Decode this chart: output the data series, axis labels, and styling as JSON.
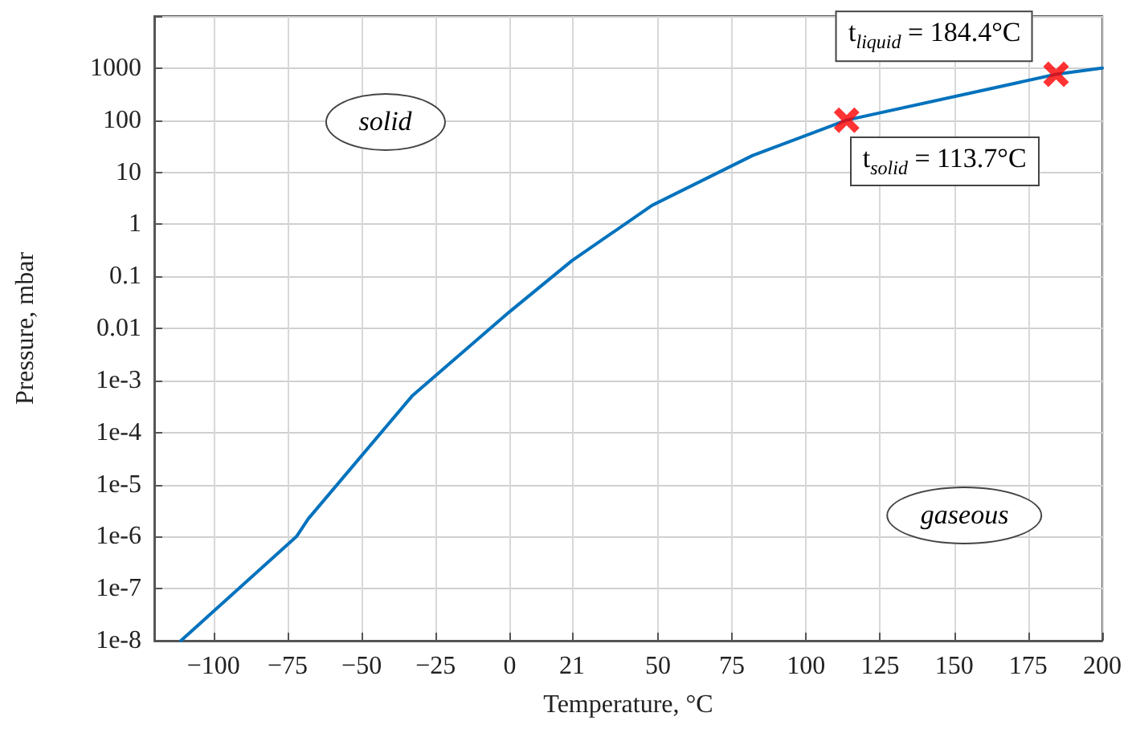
{
  "chart_data": {
    "type": "line",
    "xlabel": "Temperature, °C",
    "ylabel": "Pressure, mbar",
    "log": "y",
    "grid": true,
    "xlim": [
      -120,
      200
    ],
    "xticks": [
      {
        "value": -100,
        "label": "−100"
      },
      {
        "value": -75,
        "label": "−75"
      },
      {
        "value": -50,
        "label": "−50"
      },
      {
        "value": -25,
        "label": "−25"
      },
      0,
      21,
      50,
      75,
      100,
      125,
      150,
      175,
      200
    ],
    "ylim": [
      1e-08,
      10000
    ],
    "yticks": [
      {
        "value": 1e-08,
        "label": "1e-8"
      },
      {
        "value": 1e-07,
        "label": "1e-7"
      },
      {
        "value": 1e-06,
        "label": "1e-6"
      },
      {
        "value": 1e-05,
        "label": "1e-5"
      },
      {
        "value": 0.0001,
        "label": "1e-4"
      },
      {
        "value": 0.001,
        "label": "1e-3"
      },
      0.01,
      0.1,
      1,
      10,
      100,
      1000,
      {
        "value": 10000,
        "label": null
      }
    ],
    "series": [
      {
        "type": "line",
        "color": "#0072bd",
        "marker": "none",
        "line_style": "solid",
        "x": [
          -111,
          -72,
          -68,
          -33,
          0,
          21,
          48,
          82,
          113.7,
          184.4,
          200
        ],
        "values": [
          1e-08,
          1e-06,
          2.2e-06,
          0.0005,
          0.021,
          0.2,
          2.3,
          21,
          100,
          760,
          1000
        ]
      },
      {
        "type": "scatter",
        "color": "#ff0000",
        "marker": "cross",
        "x": [
          113.7,
          184.4
        ],
        "values": [
          100,
          760
        ]
      }
    ],
    "annotations": [
      "solid",
      "gaseous",
      {
        "text": "t$_{solid}$ = 113.7°C",
        "x": 113.7,
        "y": 100
      },
      {
        "text": "t$_{liquid}$ = 184.4°C",
        "x": 184.4,
        "y": 760
      }
    ]
  }
}
